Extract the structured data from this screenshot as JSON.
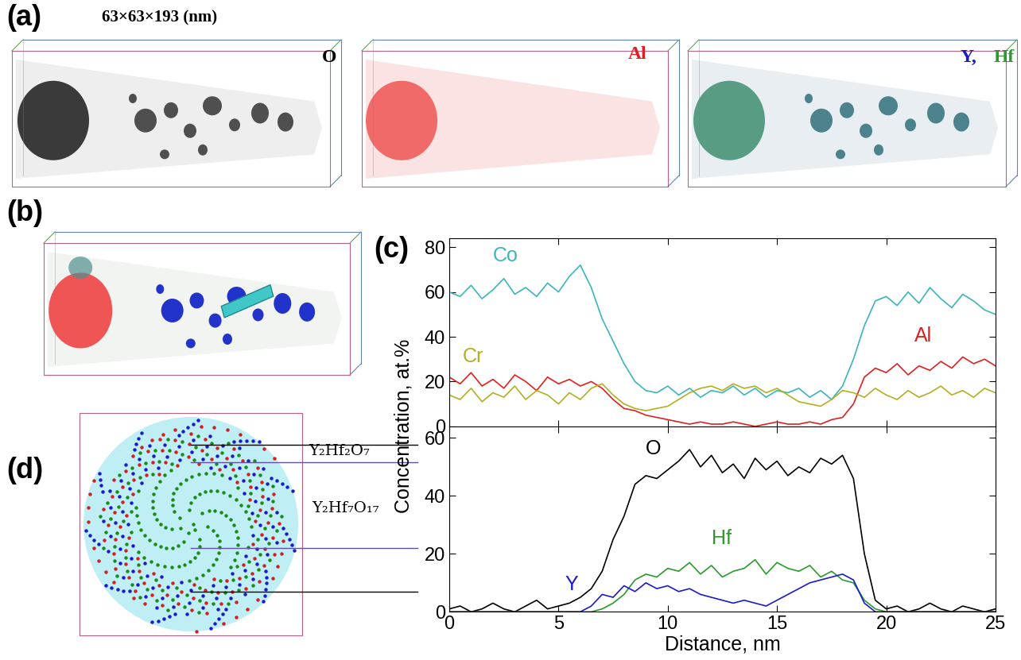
{
  "figure": {
    "panel_labels": [
      "(a)",
      "(b)",
      "(c)",
      "(d)"
    ],
    "a": {
      "dimensions": "63×63×193 (nm)",
      "maps": [
        [
          {
            "text": "O",
            "color": "#000000"
          }
        ],
        [
          {
            "text": "Al",
            "color": "#e02020"
          }
        ],
        [
          {
            "text": "Y,",
            "color": "#1a1acc"
          },
          {
            "text": "Hf",
            "color": "#2a9a2a"
          }
        ]
      ]
    },
    "d": {
      "phases": [
        "Y₂Hf₂O₇",
        "Y₂Hf₇O₁₇"
      ]
    },
    "ylabel": "Concentration, at.%"
  },
  "chart_data": [
    {
      "type": "line",
      "x": [
        0,
        0.5,
        1,
        1.5,
        2,
        2.5,
        3,
        3.5,
        4,
        4.5,
        5,
        5.5,
        6,
        6.5,
        7,
        7.5,
        8,
        8.5,
        9,
        9.5,
        10,
        10.5,
        11,
        11.5,
        12,
        12.5,
        13,
        13.5,
        14,
        14.5,
        15,
        15.5,
        16,
        16.5,
        17,
        17.5,
        18,
        18.5,
        19,
        19.5,
        20,
        20.5,
        21,
        21.5,
        22,
        22.5,
        23,
        23.5,
        24,
        24.5,
        25
      ],
      "xlim": [
        0,
        25
      ],
      "xticks": [
        0,
        5,
        10,
        15,
        20,
        25
      ],
      "ylim": [
        0,
        84
      ],
      "yticks": [
        0,
        20,
        40,
        60,
        80
      ],
      "tick_labels": "y",
      "series": [
        {
          "name": "Co",
          "color": "#3cb4bc",
          "values": [
            60,
            58,
            63,
            57,
            61,
            66,
            59,
            62,
            58,
            64,
            60,
            67,
            72,
            62,
            48,
            38,
            28,
            20,
            16,
            15,
            18,
            14,
            17,
            13,
            16,
            15,
            18,
            14,
            17,
            13,
            16,
            15,
            17,
            13,
            16,
            12,
            18,
            30,
            45,
            56,
            58,
            54,
            60,
            55,
            62,
            57,
            53,
            59,
            56,
            52,
            50
          ]
        },
        {
          "name": "Al",
          "color": "#e02020",
          "values": [
            22,
            19,
            24,
            18,
            21,
            17,
            23,
            20,
            16,
            22,
            19,
            21,
            18,
            20,
            17,
            12,
            8,
            7,
            5,
            4,
            3,
            2,
            1,
            2,
            1,
            1,
            2,
            1,
            0,
            1,
            2,
            1,
            1,
            2,
            1,
            3,
            4,
            10,
            22,
            26,
            24,
            28,
            23,
            27,
            25,
            29,
            26,
            31,
            28,
            30,
            27
          ]
        },
        {
          "name": "Cr",
          "color": "#b0b020",
          "values": [
            14,
            12,
            17,
            11,
            15,
            13,
            18,
            12,
            16,
            14,
            10,
            15,
            12,
            17,
            19,
            14,
            10,
            8,
            7,
            8,
            9,
            12,
            15,
            17,
            18,
            16,
            19,
            17,
            18,
            15,
            17,
            14,
            11,
            10,
            9,
            12,
            16,
            15,
            13,
            17,
            14,
            12,
            16,
            13,
            15,
            18,
            14,
            16,
            13,
            17,
            15
          ]
        }
      ]
    },
    {
      "type": "line",
      "x": [
        0,
        0.5,
        1,
        1.5,
        2,
        2.5,
        3,
        3.5,
        4,
        4.5,
        5,
        5.5,
        6,
        6.5,
        7,
        7.5,
        8,
        8.5,
        9,
        9.5,
        10,
        10.5,
        11,
        11.5,
        12,
        12.5,
        13,
        13.5,
        14,
        14.5,
        15,
        15.5,
        16,
        16.5,
        17,
        17.5,
        18,
        18.5,
        19,
        19.5,
        20,
        20.5,
        21,
        21.5,
        22,
        22.5,
        23,
        23.5,
        24,
        24.5,
        25
      ],
      "xlim": [
        0,
        25
      ],
      "xticks": [
        0,
        5,
        10,
        15,
        20,
        25
      ],
      "ylim": [
        0,
        64
      ],
      "yticks": [
        0,
        20,
        40,
        60
      ],
      "xlabel": "Distance, nm",
      "series": [
        {
          "name": "O",
          "color": "#000000",
          "values": [
            1,
            2,
            0,
            1,
            3,
            1,
            0,
            2,
            4,
            1,
            2,
            3,
            5,
            8,
            14,
            25,
            33,
            44,
            47,
            46,
            49,
            52,
            56,
            50,
            54,
            48,
            51,
            46,
            53,
            49,
            52,
            47,
            50,
            48,
            53,
            51,
            54,
            46,
            20,
            4,
            1,
            2,
            0,
            1,
            3,
            1,
            0,
            2,
            1,
            0,
            1
          ]
        },
        {
          "name": "Hf",
          "color": "#2a9a2a",
          "values": [
            0,
            0,
            0,
            0,
            0,
            0,
            0,
            0,
            0,
            0,
            0,
            0,
            0,
            0,
            1,
            3,
            6,
            11,
            13,
            12,
            15,
            14,
            17,
            13,
            16,
            12,
            14,
            15,
            18,
            13,
            17,
            15,
            14,
            16,
            12,
            14,
            11,
            10,
            4,
            1,
            0,
            0,
            0,
            0,
            0,
            0,
            0,
            0,
            0,
            0,
            0
          ]
        },
        {
          "name": "Y",
          "color": "#1a1acc",
          "values": [
            0,
            0,
            0,
            0,
            0,
            0,
            0,
            0,
            0,
            0,
            0,
            0,
            0,
            2,
            6,
            5,
            9,
            7,
            10,
            8,
            9,
            7,
            8,
            6,
            5,
            4,
            3,
            4,
            3,
            2,
            4,
            6,
            8,
            10,
            11,
            12,
            13,
            11,
            3,
            0,
            0,
            0,
            0,
            0,
            0,
            0,
            0,
            0,
            0,
            0,
            0
          ]
        }
      ]
    }
  ]
}
